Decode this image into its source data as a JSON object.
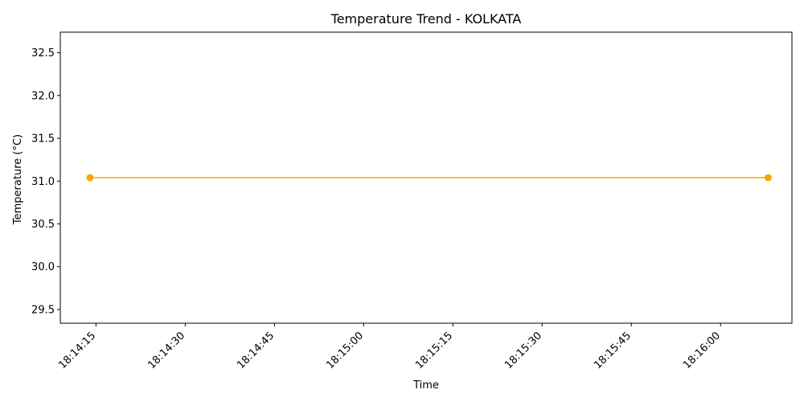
{
  "chart_data": {
    "type": "line",
    "title": "Temperature Trend - KOLKATA",
    "xlabel": "Time",
    "ylabel": "Temperature (°C)",
    "x_ticks": [
      "18:14:15",
      "18:14:30",
      "18:14:45",
      "18:15:00",
      "18:15:15",
      "18:15:30",
      "18:15:45",
      "18:16:00"
    ],
    "y_ticks": [
      29.5,
      30.0,
      30.5,
      31.0,
      31.5,
      32.0,
      32.5
    ],
    "xlim": [
      "18:14:09",
      "18:16:12"
    ],
    "ylim": [
      29.34,
      32.74
    ],
    "grid": false,
    "series": [
      {
        "color": "#ffa500",
        "marker": "circle",
        "x": [
          "18:14:14",
          "18:16:08"
        ],
        "y": [
          31.04,
          31.04
        ]
      }
    ]
  }
}
